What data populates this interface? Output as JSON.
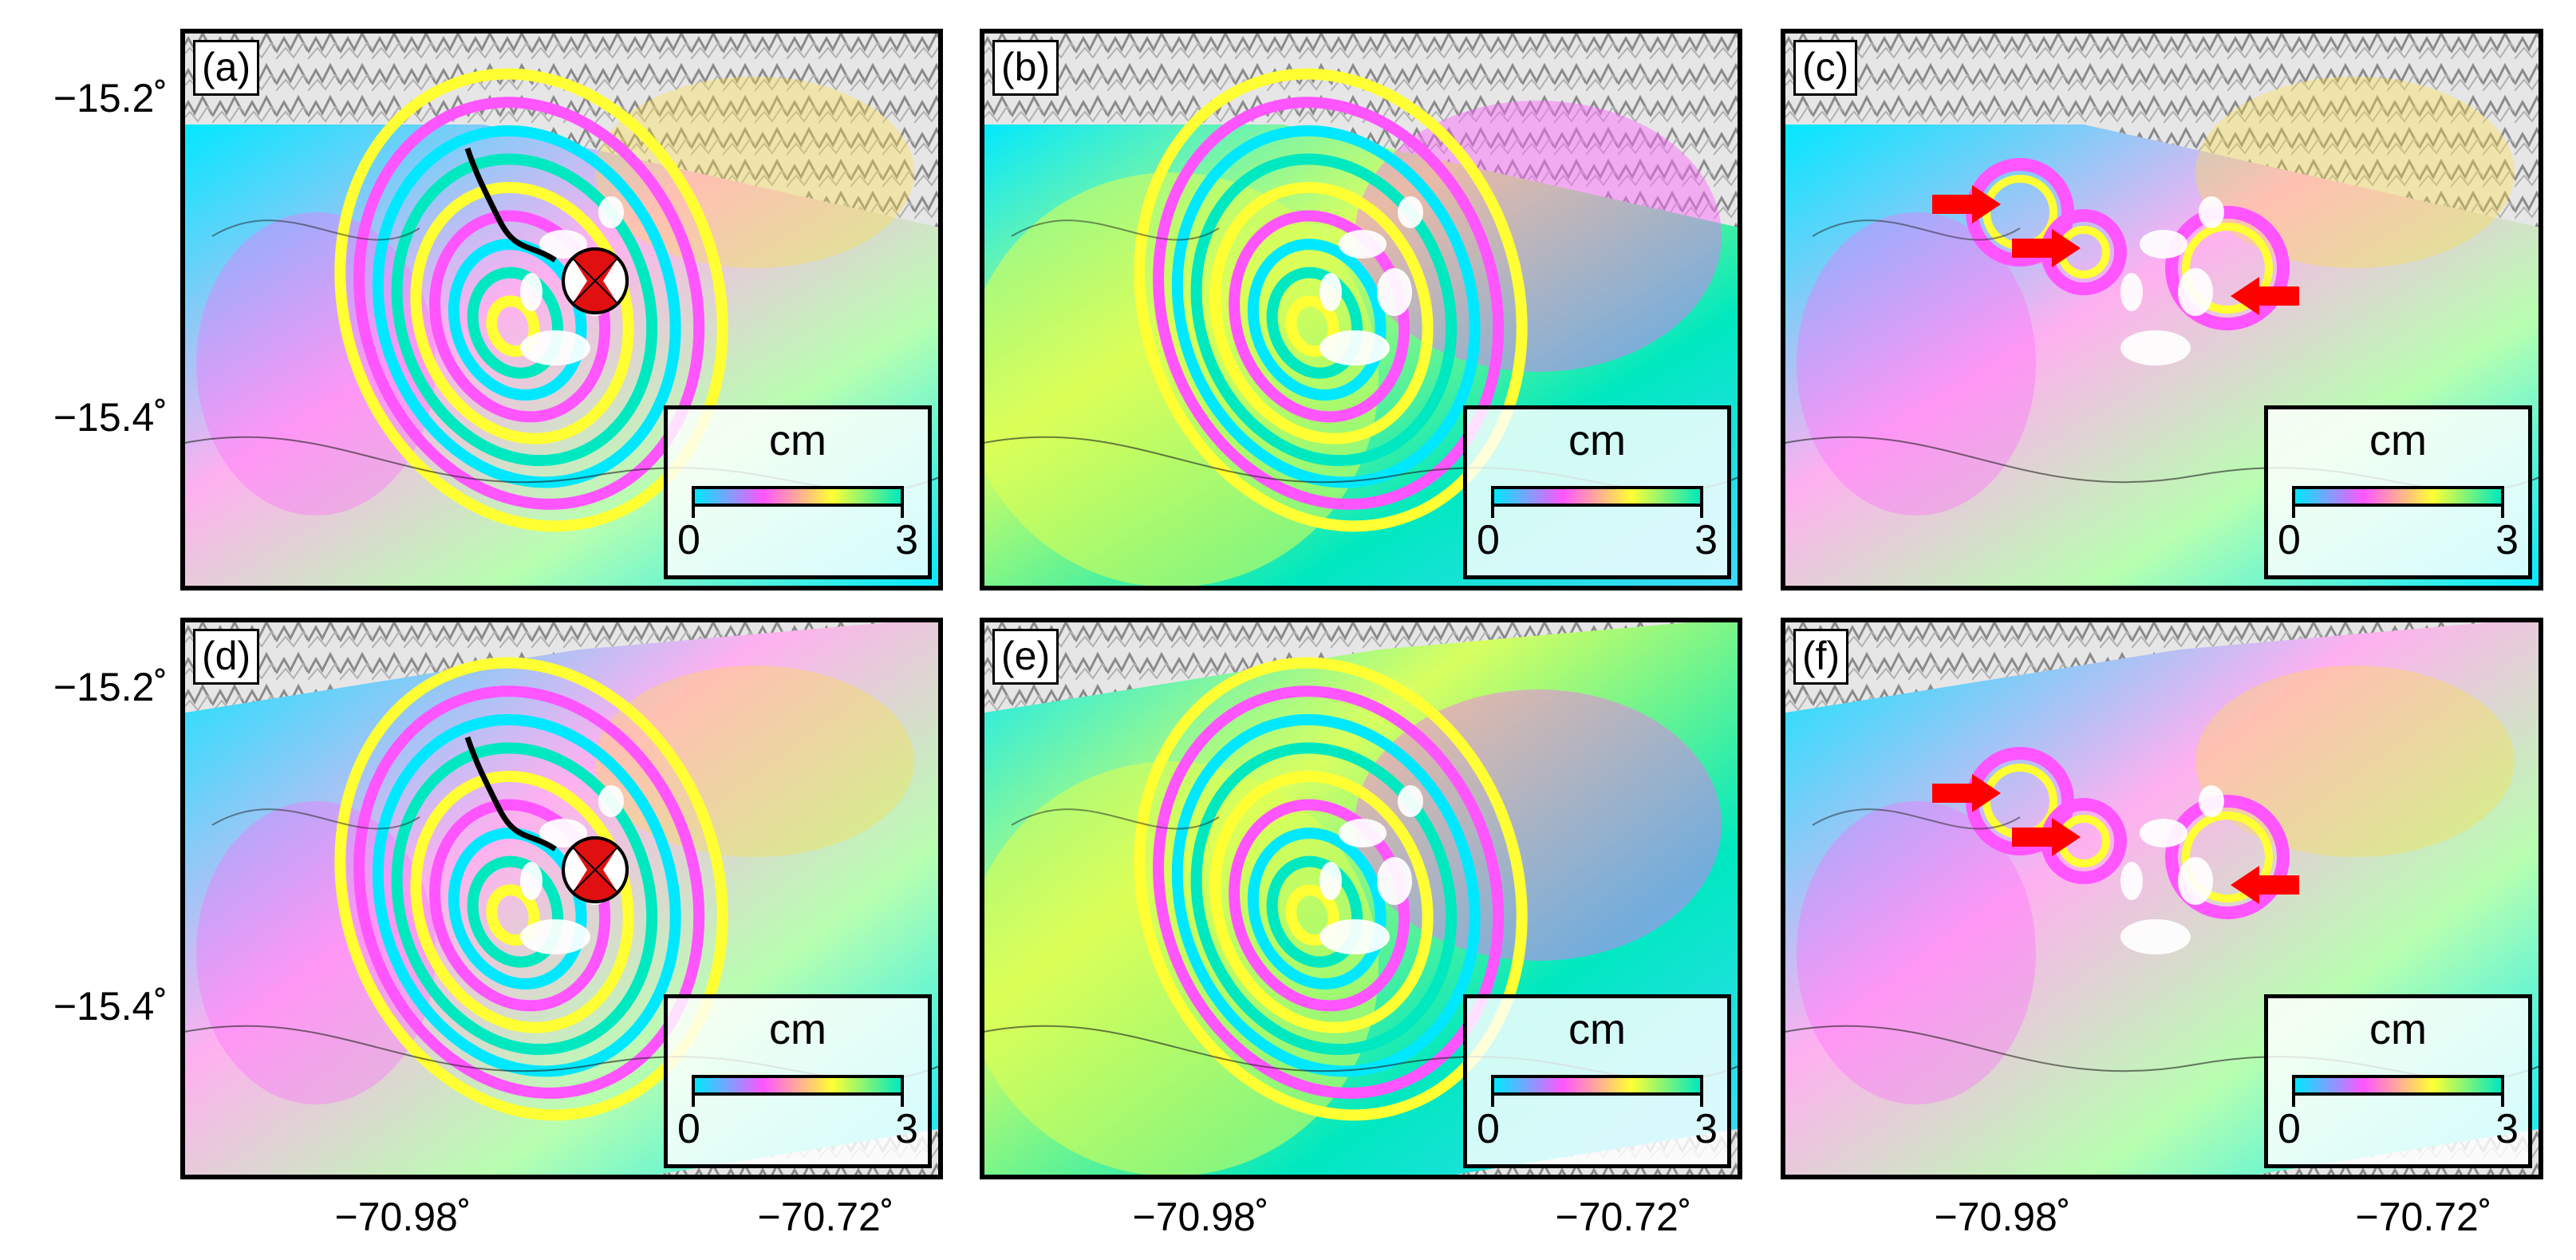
{
  "axes": {
    "latitude_labels": [
      "−15.2˚",
      "−15.4˚",
      "−15.2˚",
      "−15.4˚"
    ],
    "longitude_labels": [
      "−70.98˚",
      "−70.72˚",
      "−70.98˚",
      "−70.72˚",
      "−70.98˚",
      "−70.72˚"
    ]
  },
  "colorbar": {
    "unit": "cm",
    "min": "0",
    "max": "3",
    "colors": [
      "#00e8ff",
      "#ff55ff",
      "#ffff33",
      "#00e8c0"
    ]
  },
  "panels": [
    {
      "id": "a",
      "label": "(a)",
      "kind": "observed",
      "has_beachball": true,
      "has_arrows": false
    },
    {
      "id": "b",
      "label": "(b)",
      "kind": "model",
      "has_beachball": false,
      "has_arrows": false
    },
    {
      "id": "c",
      "label": "(c)",
      "kind": "residual",
      "has_beachball": false,
      "has_arrows": true
    },
    {
      "id": "d",
      "label": "(d)",
      "kind": "observed",
      "has_beachball": true,
      "has_arrows": false
    },
    {
      "id": "e",
      "label": "(e)",
      "kind": "model",
      "has_beachball": false,
      "has_arrows": false
    },
    {
      "id": "f",
      "label": "(f)",
      "kind": "residual",
      "has_beachball": false,
      "has_arrows": true
    }
  ],
  "colors": {
    "arrow": "#ff0000",
    "beachball_compression": "#e01010",
    "frame": "#000000"
  }
}
